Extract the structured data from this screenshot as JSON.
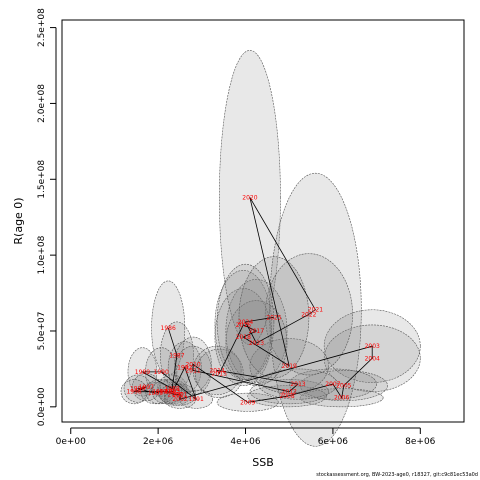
{
  "chart_data": {
    "type": "scatter",
    "title": "",
    "xlabel": "SSB",
    "ylabel": "R(age 0)",
    "xlim": [
      -200000,
      9000000
    ],
    "ylim": [
      -10000000,
      255000000
    ],
    "xticks": [
      0,
      2000000,
      4000000,
      6000000,
      8000000
    ],
    "xtick_labels": [
      "0e+00",
      "2e+06",
      "4e+06",
      "6e+06",
      "8e+06"
    ],
    "yticks": [
      0,
      50000000,
      100000000,
      150000000,
      200000000,
      250000000
    ],
    "ytick_labels": [
      "0.0e+00",
      "5.0e+07",
      "1.0e+08",
      "1.5e+08",
      "2.0e+08",
      "2.5e+08"
    ],
    "grid": false,
    "point_label_color": "#ff0000",
    "path_color": "#000000",
    "ellipse_fill": "#808080",
    "ellipse_border": "#555555",
    "points": [
      {
        "year": "1986",
        "ssb": 2230000,
        "rec": 52000000,
        "w": 380000,
        "h": 31000000
      },
      {
        "year": "1987",
        "ssb": 2430000,
        "rec": 34000000,
        "w": 380000,
        "h": 22000000
      },
      {
        "year": "1988",
        "ssb": 2320000,
        "rec": 12000000,
        "w": 340000,
        "h": 9000000
      },
      {
        "year": "1989",
        "ssb": 1640000,
        "rec": 23000000,
        "w": 330000,
        "h": 16000000
      },
      {
        "year": "1990",
        "ssb": 2070000,
        "rec": 23000000,
        "w": 360000,
        "h": 16000000
      },
      {
        "year": "1991",
        "ssb": 2870000,
        "rec": 5000000,
        "w": 380000,
        "h": 6000000
      },
      {
        "year": "1992",
        "ssb": 2610000,
        "rec": 26000000,
        "w": 380000,
        "h": 17000000
      },
      {
        "year": "1993",
        "ssb": 2330000,
        "rec": 10000000,
        "w": 340000,
        "h": 8000000
      },
      {
        "year": "1994",
        "ssb": 2040000,
        "rec": 10000000,
        "w": 330000,
        "h": 8000000
      },
      {
        "year": "1995",
        "ssb": 1940000,
        "rec": 9000000,
        "w": 330000,
        "h": 7000000
      },
      {
        "year": "1996",
        "ssb": 1530000,
        "rec": 12000000,
        "w": 310000,
        "h": 9000000
      },
      {
        "year": "1997",
        "ssb": 1730000,
        "rec": 13000000,
        "w": 320000,
        "h": 9000000
      },
      {
        "year": "1998",
        "ssb": 1450000,
        "rec": 10000000,
        "w": 300000,
        "h": 8000000
      },
      {
        "year": "1999",
        "ssb": 2200000,
        "rec": 10000000,
        "w": 340000,
        "h": 8000000
      },
      {
        "year": "2000",
        "ssb": 2390000,
        "rec": 8000000,
        "w": 350000,
        "h": 7000000
      },
      {
        "year": "2001",
        "ssb": 2500000,
        "rec": 8000000,
        "w": 360000,
        "h": 7000000
      },
      {
        "year": "2002",
        "ssb": 2500000,
        "rec": 5000000,
        "w": 360000,
        "h": 6000000
      },
      {
        "year": "2003",
        "ssb": 6900000,
        "rec": 40000000,
        "w": 1100000,
        "h": 24000000
      },
      {
        "year": "2004",
        "ssb": 6900000,
        "rec": 32000000,
        "w": 1100000,
        "h": 22000000
      },
      {
        "year": "2005",
        "ssb": 6250000,
        "rec": 14000000,
        "w": 1000000,
        "h": 10000000
      },
      {
        "year": "2006",
        "ssb": 6200000,
        "rec": 6000000,
        "w": 950000,
        "h": 6000000
      },
      {
        "year": "2007",
        "ssb": 6000000,
        "rec": 15000000,
        "w": 1000000,
        "h": 10000000
      },
      {
        "year": "2008",
        "ssb": 4950000,
        "rec": 7000000,
        "w": 900000,
        "h": 7000000
      },
      {
        "year": "2009",
        "ssb": 4050000,
        "rec": 3000000,
        "w": 700000,
        "h": 6000000
      },
      {
        "year": "2010",
        "ssb": 2800000,
        "rec": 28000000,
        "w": 420000,
        "h": 18000000
      },
      {
        "year": "2011",
        "ssb": 2800000,
        "rec": 24000000,
        "w": 420000,
        "h": 16000000
      },
      {
        "year": "2012",
        "ssb": 5000000,
        "rec": 10000000,
        "w": 900000,
        "h": 8000000
      },
      {
        "year": "2013",
        "ssb": 5200000,
        "rec": 15000000,
        "w": 900000,
        "h": 10000000
      },
      {
        "year": "2014",
        "ssb": 3350000,
        "rec": 24000000,
        "w": 550000,
        "h": 16000000
      },
      {
        "year": "2015",
        "ssb": 3400000,
        "rec": 22000000,
        "w": 550000,
        "h": 16000000
      },
      {
        "year": "2016",
        "ssb": 3950000,
        "rec": 54000000,
        "w": 650000,
        "h": 36000000
      },
      {
        "year": "2017",
        "ssb": 4250000,
        "rec": 50000000,
        "w": 700000,
        "h": 34000000
      },
      {
        "year": "2018",
        "ssb": 3950000,
        "rec": 46000000,
        "w": 650000,
        "h": 32000000
      },
      {
        "year": "2019",
        "ssb": 5000000,
        "rec": 27000000,
        "w": 900000,
        "h": 18000000
      },
      {
        "year": "2020",
        "ssb": 4100000,
        "rec": 138000000,
        "w": 700000,
        "h": 97000000
      },
      {
        "year": "2021",
        "ssb": 5600000,
        "rec": 64000000,
        "w": 1050000,
        "h": 90000000
      },
      {
        "year": "2022",
        "ssb": 5450000,
        "rec": 61000000,
        "w": 1000000,
        "h": 40000000
      },
      {
        "year": "2023",
        "ssb": 4250000,
        "rec": 42000000,
        "w": 700000,
        "h": 28000000
      },
      {
        "year": "2024",
        "ssb": 4000000,
        "rec": 56000000,
        "w": 650000,
        "h": 38000000
      },
      {
        "year": "2025",
        "ssb": 4650000,
        "rec": 59000000,
        "w": 800000,
        "h": 40000000
      }
    ],
    "path_order": [
      "1986",
      "1987",
      "1988",
      "1989",
      "1990",
      "1991",
      "1992",
      "1993",
      "1994",
      "1995",
      "1996",
      "1997",
      "1998",
      "1999",
      "2000",
      "2001",
      "2002",
      "2003",
      "2004",
      "2005",
      "2006",
      "2007",
      "2008",
      "2009",
      "2010",
      "2011",
      "2012",
      "2013",
      "2014",
      "2015",
      "2016",
      "2017",
      "2018",
      "2019",
      "2020",
      "2021",
      "2022",
      "2023",
      "2024",
      "2025"
    ]
  },
  "footer": "stockassessment.org, BW-2023-age0, r18327, git:c9c81ec53a0d"
}
